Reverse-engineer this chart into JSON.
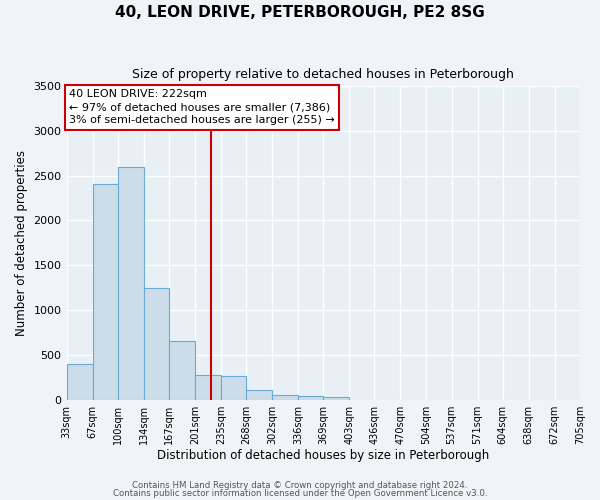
{
  "title": "40, LEON DRIVE, PETERBOROUGH, PE2 8SG",
  "subtitle": "Size of property relative to detached houses in Peterborough",
  "xlabel": "Distribution of detached houses by size in Peterborough",
  "ylabel": "Number of detached properties",
  "bar_color": "#ccdce8",
  "bar_edge_color": "#6aaad4",
  "fig_bg_color": "#f0f4f8",
  "ax_bg_color": "#e8eff5",
  "grid_color": "#ffffff",
  "vline_x": 222,
  "vline_color": "#cc0000",
  "bin_edges": [
    33,
    67,
    100,
    134,
    167,
    201,
    235,
    268,
    302,
    336,
    369,
    403,
    436,
    470,
    504,
    537,
    571,
    604,
    638,
    672,
    705
  ],
  "bin_counts": [
    400,
    2400,
    2600,
    1250,
    650,
    270,
    260,
    110,
    55,
    40,
    30,
    0,
    0,
    0,
    0,
    0,
    0,
    0,
    0,
    0
  ],
  "ylim": [
    0,
    3500
  ],
  "yticks": [
    0,
    500,
    1000,
    1500,
    2000,
    2500,
    3000,
    3500
  ],
  "annotation_title": "40 LEON DRIVE: 222sqm",
  "annotation_line1": "← 97% of detached houses are smaller (7,386)",
  "annotation_line2": "3% of semi-detached houses are larger (255) →",
  "annotation_box_color": "#ffffff",
  "annotation_border_color": "#cc0000",
  "footer_line1": "Contains HM Land Registry data © Crown copyright and database right 2024.",
  "footer_line2": "Contains public sector information licensed under the Open Government Licence v3.0.",
  "tick_labels": [
    "33sqm",
    "67sqm",
    "100sqm",
    "134sqm",
    "167sqm",
    "201sqm",
    "235sqm",
    "268sqm",
    "302sqm",
    "336sqm",
    "369sqm",
    "403sqm",
    "436sqm",
    "470sqm",
    "504sqm",
    "537sqm",
    "571sqm",
    "604sqm",
    "638sqm",
    "672sqm",
    "705sqm"
  ]
}
